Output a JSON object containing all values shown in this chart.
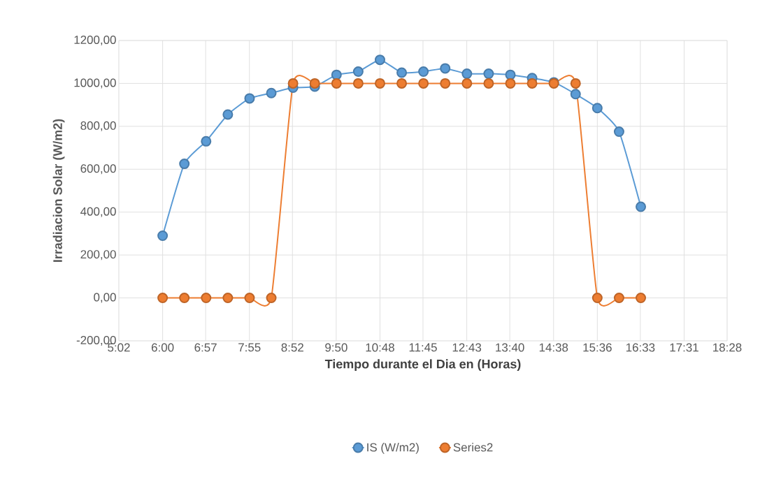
{
  "chart_data": {
    "type": "line",
    "xlabel": "Tiempo durante el Dia en (Horas)",
    "ylabel": "Irradiacion Solar (W/m2)",
    "x": [
      6.0,
      6.48,
      6.96,
      7.44,
      7.92,
      8.4,
      8.88,
      9.36,
      9.84,
      10.32,
      10.8,
      11.28,
      11.76,
      12.24,
      12.72,
      13.2,
      13.68,
      14.16,
      14.64,
      15.12,
      15.6,
      16.08,
      16.56
    ],
    "series": [
      {
        "name": "IS (W/m2)",
        "color": "#5b9bd5",
        "values": [
          290,
          625,
          730,
          855,
          930,
          955,
          980,
          985,
          1040,
          1055,
          1110,
          1050,
          1055,
          1070,
          1045,
          1045,
          1040,
          1025,
          1005,
          950,
          885,
          775,
          425
        ]
      },
      {
        "name": "Series2",
        "color": "#ed7d31",
        "values": [
          0,
          0,
          0,
          0,
          0,
          0,
          1000,
          1000,
          1000,
          1000,
          1000,
          1000,
          1000,
          1000,
          1000,
          1000,
          1000,
          1000,
          1000,
          1000,
          0,
          0,
          0
        ]
      }
    ],
    "xlim": [
      5.0333,
      18.4667
    ],
    "xticks": [
      {
        "value": 5.0333,
        "label": "5:02"
      },
      {
        "value": 6.0,
        "label": "6:00"
      },
      {
        "value": 6.95,
        "label": "6:57"
      },
      {
        "value": 7.9167,
        "label": "7:55"
      },
      {
        "value": 8.8667,
        "label": "8:52"
      },
      {
        "value": 9.8333,
        "label": "9:50"
      },
      {
        "value": 10.8,
        "label": "10:48"
      },
      {
        "value": 11.75,
        "label": "11:45"
      },
      {
        "value": 12.7167,
        "label": "12:43"
      },
      {
        "value": 13.6667,
        "label": "13:40"
      },
      {
        "value": 14.6333,
        "label": "14:38"
      },
      {
        "value": 15.6,
        "label": "15:36"
      },
      {
        "value": 16.55,
        "label": "16:33"
      },
      {
        "value": 17.5167,
        "label": "17:31"
      },
      {
        "value": 18.4667,
        "label": "18:28"
      }
    ],
    "ylim": [
      -200,
      1200
    ],
    "yticks": [
      {
        "value": -200,
        "label": "-200,00"
      },
      {
        "value": 0,
        "label": "0,00"
      },
      {
        "value": 200,
        "label": "200,00"
      },
      {
        "value": 400,
        "label": "400,00"
      },
      {
        "value": 600,
        "label": "600,00"
      },
      {
        "value": 800,
        "label": "800,00"
      },
      {
        "value": 1000,
        "label": "1000,00"
      },
      {
        "value": 1200,
        "label": "1200,00"
      }
    ],
    "grid": true,
    "legend": "bottom",
    "marker": "circle",
    "line_style": "solid"
  }
}
